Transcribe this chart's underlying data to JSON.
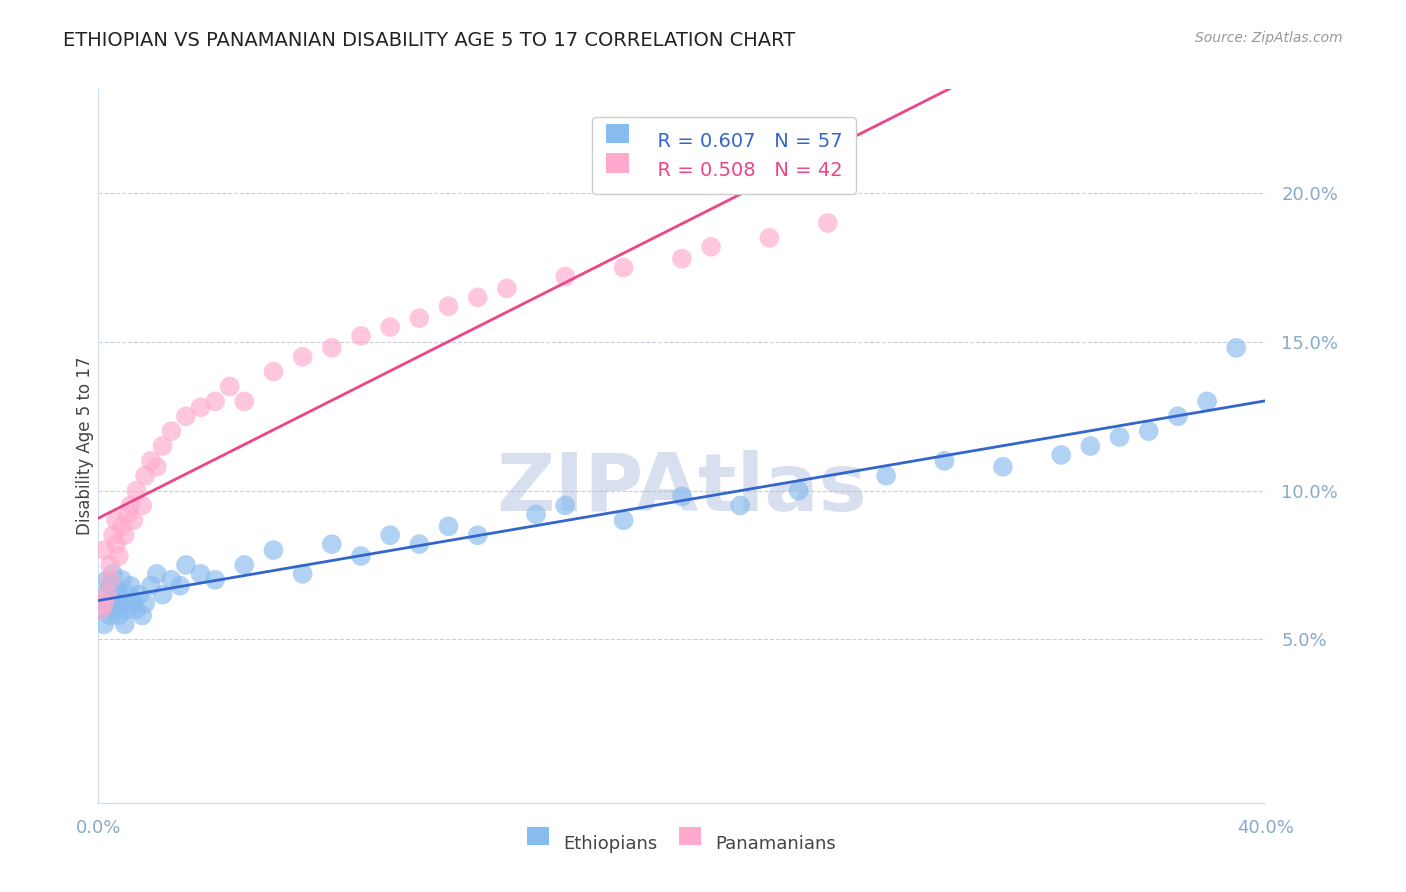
{
  "title": "ETHIOPIAN VS PANAMANIAN DISABILITY AGE 5 TO 17 CORRELATION CHART",
  "source_text": "Source: ZipAtlas.com",
  "ylabel": "Disability Age 5 to 17",
  "ytick_labels": [
    "5.0%",
    "10.0%",
    "15.0%",
    "20.0%"
  ],
  "ytick_values": [
    0.05,
    0.1,
    0.15,
    0.2
  ],
  "xlim": [
    0.0,
    0.4
  ],
  "ylim": [
    -0.005,
    0.235
  ],
  "legend_R1": "R = 0.607",
  "legend_N1": "N = 57",
  "legend_R2": "R = 0.508",
  "legend_N2": "N = 42",
  "blue_color": "#88BBEE",
  "pink_color": "#FFAACC",
  "blue_line_color": "#3366CC",
  "pink_line_color": "#EE4488",
  "watermark_color": "#AABBDD",
  "axis_color": "#88AACC",
  "grid_color": "#CCCCDD",
  "ethiopians_x": [
    0.001,
    0.002,
    0.002,
    0.003,
    0.003,
    0.004,
    0.004,
    0.005,
    0.005,
    0.006,
    0.006,
    0.007,
    0.007,
    0.008,
    0.008,
    0.009,
    0.01,
    0.01,
    0.011,
    0.012,
    0.013,
    0.014,
    0.015,
    0.016,
    0.018,
    0.02,
    0.022,
    0.025,
    0.028,
    0.03,
    0.035,
    0.04,
    0.05,
    0.06,
    0.07,
    0.08,
    0.09,
    0.1,
    0.11,
    0.12,
    0.13,
    0.15,
    0.16,
    0.18,
    0.2,
    0.22,
    0.24,
    0.27,
    0.29,
    0.31,
    0.33,
    0.34,
    0.35,
    0.36,
    0.37,
    0.38,
    0.39
  ],
  "ethiopians_y": [
    0.06,
    0.065,
    0.055,
    0.062,
    0.07,
    0.058,
    0.068,
    0.063,
    0.072,
    0.06,
    0.067,
    0.058,
    0.065,
    0.062,
    0.07,
    0.055,
    0.065,
    0.06,
    0.068,
    0.062,
    0.06,
    0.065,
    0.058,
    0.062,
    0.068,
    0.072,
    0.065,
    0.07,
    0.068,
    0.075,
    0.072,
    0.07,
    0.075,
    0.08,
    0.072,
    0.082,
    0.078,
    0.085,
    0.082,
    0.088,
    0.085,
    0.092,
    0.095,
    0.09,
    0.098,
    0.095,
    0.1,
    0.105,
    0.11,
    0.108,
    0.112,
    0.115,
    0.118,
    0.12,
    0.125,
    0.13,
    0.148
  ],
  "panamanians_x": [
    0.001,
    0.002,
    0.002,
    0.003,
    0.004,
    0.004,
    0.005,
    0.006,
    0.006,
    0.007,
    0.008,
    0.009,
    0.01,
    0.011,
    0.012,
    0.013,
    0.015,
    0.016,
    0.018,
    0.02,
    0.022,
    0.025,
    0.03,
    0.035,
    0.04,
    0.045,
    0.05,
    0.06,
    0.07,
    0.08,
    0.09,
    0.1,
    0.11,
    0.12,
    0.13,
    0.14,
    0.16,
    0.18,
    0.2,
    0.21,
    0.23,
    0.25
  ],
  "panamanians_y": [
    0.06,
    0.062,
    0.08,
    0.065,
    0.075,
    0.07,
    0.085,
    0.082,
    0.09,
    0.078,
    0.088,
    0.085,
    0.092,
    0.095,
    0.09,
    0.1,
    0.095,
    0.105,
    0.11,
    0.108,
    0.115,
    0.12,
    0.125,
    0.128,
    0.13,
    0.135,
    0.13,
    0.14,
    0.145,
    0.148,
    0.152,
    0.155,
    0.158,
    0.162,
    0.165,
    0.168,
    0.172,
    0.175,
    0.178,
    0.182,
    0.185,
    0.19
  ]
}
